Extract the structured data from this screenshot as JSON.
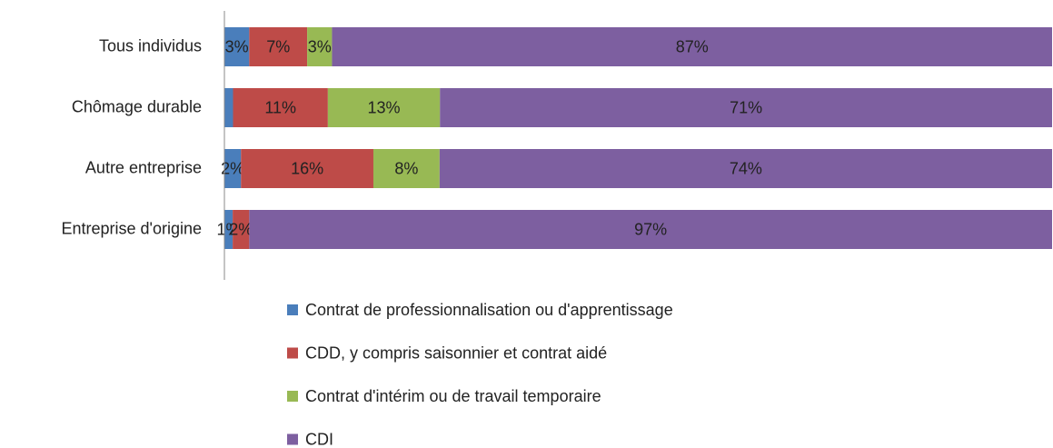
{
  "chart_data": {
    "type": "bar",
    "orientation": "horizontal",
    "stacking": "percent",
    "categories": [
      "Tous individus",
      "Chômage durable",
      "Autre entreprise",
      "Entreprise d'origine"
    ],
    "series": [
      {
        "name": "Contrat de professionnalisation ou d'apprentissage",
        "color": "#4a7ebb",
        "values": [
          3,
          1,
          2,
          1
        ],
        "value_labels": [
          "3%",
          null,
          "2%",
          "1%"
        ]
      },
      {
        "name": "CDD, y compris saisonnier et contrat aidé",
        "color": "#be4b48",
        "values": [
          7,
          11,
          16,
          2
        ],
        "value_labels": [
          "7%",
          "11%",
          "16%",
          "2%"
        ]
      },
      {
        "name": "Contrat d'intérim ou de travail temporaire",
        "color": "#98b954",
        "values": [
          3,
          13,
          8,
          0
        ],
        "value_labels": [
          "3%",
          "13%",
          "8%",
          null
        ]
      },
      {
        "name": "CDI",
        "color": "#7d5fa0",
        "values": [
          87,
          71,
          74,
          97
        ],
        "value_labels": [
          "87%",
          "71%",
          "74%",
          "97%"
        ]
      }
    ],
    "legend": "bottom"
  }
}
